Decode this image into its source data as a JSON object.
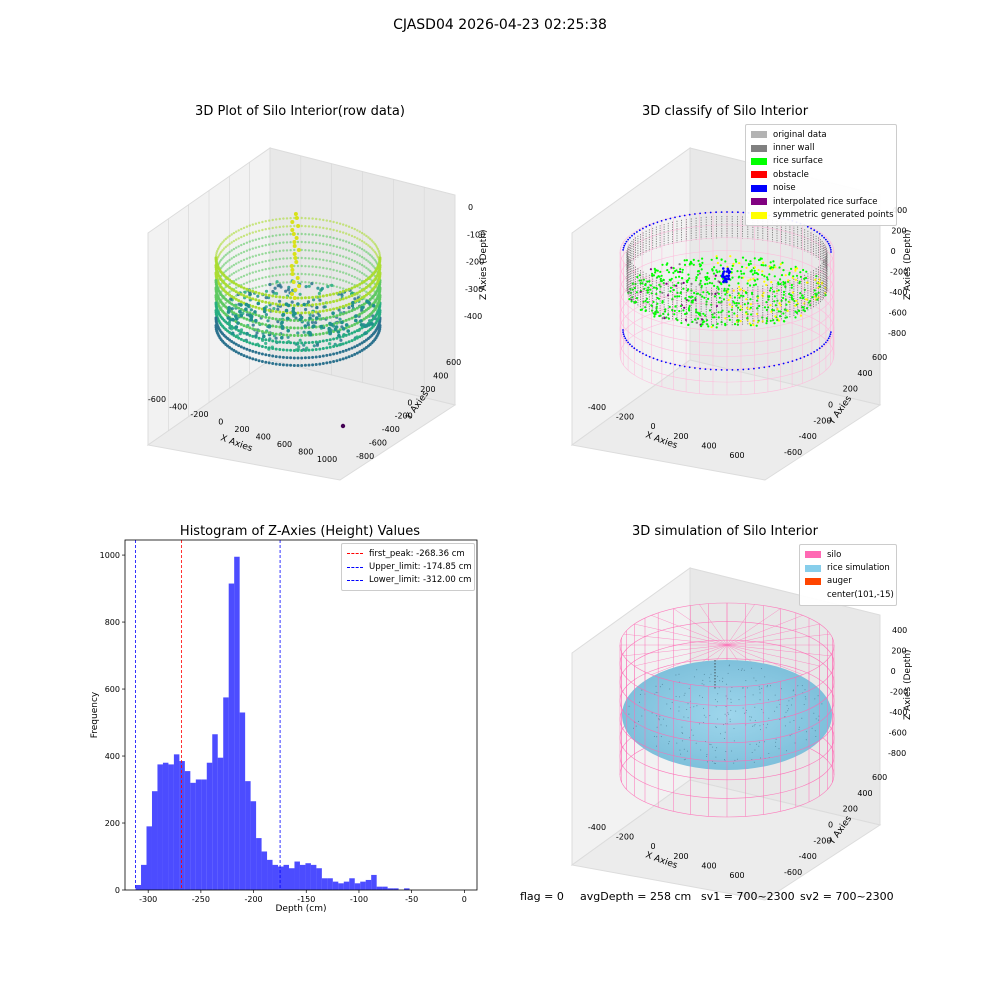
{
  "page": {
    "suptitle": "CJASD04 2026-04-23 02:25:38"
  },
  "plot1": {
    "title": "3D Plot of Silo Interior(row data)",
    "xlabel": "X Axies",
    "ylabel": "Y Axies",
    "zlabel": "Z Axies (Depth)",
    "xticks": [
      "-600",
      "-400",
      "-200",
      "0",
      "200",
      "400",
      "600",
      "800",
      "1000"
    ],
    "yticks": [
      "-800",
      "-600",
      "-400",
      "-200",
      "0",
      "200",
      "400",
      "600"
    ],
    "zticks": [
      "0",
      "-100",
      "-200",
      "-300",
      "-400"
    ]
  },
  "plot2": {
    "title": "3D classify of Silo Interior",
    "xlabel": "X Axies",
    "ylabel": "Y Axies",
    "zlabel": "Z Axies (Depth)",
    "xticks": [
      "-400",
      "-200",
      "0",
      "200",
      "400",
      "600"
    ],
    "yticks": [
      "-600",
      "-400",
      "-200",
      "0",
      "200",
      "400",
      "600"
    ],
    "zticks": [
      "400",
      "200",
      "0",
      "-200",
      "-400",
      "-600",
      "-800"
    ],
    "legend": [
      {
        "label": "original data",
        "color": "#b3b3b3"
      },
      {
        "label": "inner wall",
        "color": "#808080"
      },
      {
        "label": "rice surface",
        "color": "#00ff00"
      },
      {
        "label": "obstacle",
        "color": "#ff0000"
      },
      {
        "label": "noise",
        "color": "#0000ff"
      },
      {
        "label": "interpolated rice surface",
        "color": "#800080"
      },
      {
        "label": "symmetric generated points",
        "color": "#ffff00"
      }
    ]
  },
  "chart_data": [
    {
      "type": "bar",
      "title": "Histogram of Z-Axies (Height) Values",
      "xlabel": "Depth (cm)",
      "ylabel": "Frequency",
      "xlim": [
        -322,
        12
      ],
      "ylim": [
        0,
        1045
      ],
      "xticks": [
        "-300",
        "-250",
        "-200",
        "-150",
        "-100",
        "-50",
        "0"
      ],
      "yticks": [
        "0",
        "200",
        "400",
        "600",
        "800",
        "1000"
      ],
      "bin_width": 5.2,
      "bin_start": -312,
      "values": [
        15,
        75,
        190,
        295,
        375,
        380,
        375,
        405,
        385,
        355,
        320,
        330,
        330,
        380,
        465,
        395,
        575,
        915,
        995,
        530,
        325,
        265,
        155,
        115,
        90,
        75,
        70,
        75,
        65,
        85,
        75,
        80,
        75,
        65,
        35,
        35,
        25,
        20,
        25,
        35,
        20,
        25,
        30,
        45,
        10,
        10,
        5,
        5,
        0,
        5
      ],
      "color": "#0000ff",
      "reference_lines": [
        {
          "label": "first_peak: -268.36 cm",
          "x": -268.36,
          "color": "#ff0000"
        },
        {
          "label": "Upper_limit: -174.85 cm",
          "x": -174.85,
          "color": "#0000ff"
        },
        {
          "label": "Lower_limit: -312.00 cm",
          "x": -312.0,
          "color": "#0000ff"
        }
      ],
      "legend_position": "top-right"
    }
  ],
  "plot4": {
    "title": "3D simulation of Silo Interior",
    "xlabel": "X Axies",
    "ylabel": "Y Axies",
    "zlabel": "Z Axies (Depth)",
    "xticks": [
      "-400",
      "-200",
      "0",
      "200",
      "400",
      "600"
    ],
    "yticks": [
      "-600",
      "-400",
      "-200",
      "0",
      "200",
      "400",
      "600"
    ],
    "zticks": [
      "400",
      "200",
      "0",
      "-200",
      "-400",
      "-600",
      "-800"
    ],
    "legend": [
      {
        "label": "silo",
        "color": "#ff69b4"
      },
      {
        "label": "rice simulation",
        "color": "#87ceeb"
      },
      {
        "label": "auger",
        "color": "#ff4500"
      },
      {
        "label": "center(101,-15)",
        "color": ""
      }
    ]
  },
  "footer": {
    "flag": "flag = 0",
    "avg": "avgDepth = 258 cm",
    "sv1": "sv1 = 700~2300",
    "sv2": "sv2 = 700~2300"
  }
}
